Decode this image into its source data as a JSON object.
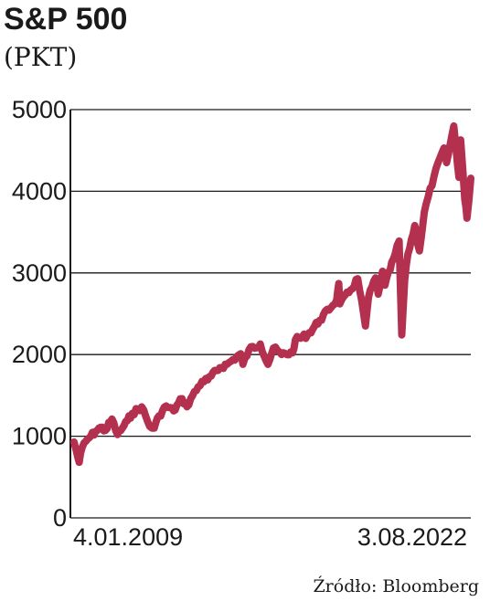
{
  "chart_data": {
    "type": "line",
    "title": "S&P 500",
    "subtitle": "(PKT)",
    "xlabel": "",
    "ylabel": "",
    "ylim": [
      0,
      5000
    ],
    "y_ticks": [
      "0",
      "1000",
      "2000",
      "3000",
      "4000",
      "5000"
    ],
    "x_tick_labels": [
      "4.01.2009",
      "3.08.2022"
    ],
    "xlim": [
      "2009-01-04",
      "2022-08-03"
    ],
    "grid": true,
    "legend": "none",
    "line_color": "#b3304f",
    "source": "Źródło: Bloomberg",
    "series": [
      {
        "x": [
          "2009-01-04",
          "2009-02-01",
          "2009-03-09",
          "2009-04-15",
          "2009-06-01",
          "2009-08-01",
          "2009-10-01",
          "2009-12-01",
          "2010-02-01",
          "2010-04-23",
          "2010-07-01",
          "2010-09-01",
          "2010-11-01",
          "2011-01-01",
          "2011-04-29",
          "2011-08-08",
          "2011-10-03",
          "2011-12-01",
          "2012-03-01",
          "2012-06-01",
          "2012-09-14",
          "2012-11-15",
          "2013-01-01",
          "2013-05-21",
          "2013-08-01",
          "2013-12-31",
          "2014-04-01",
          "2014-09-18",
          "2014-10-15",
          "2014-12-31",
          "2015-05-21",
          "2015-08-25",
          "2015-11-01",
          "2016-02-11",
          "2016-06-27",
          "2016-08-01",
          "2016-12-31",
          "2017-06-01",
          "2017-12-31",
          "2018-01-26",
          "2018-02-08",
          "2018-06-01",
          "2018-09-20",
          "2018-12-24",
          "2019-02-01",
          "2019-04-30",
          "2019-06-03",
          "2019-07-26",
          "2019-08-26",
          "2019-12-31",
          "2020-02-19",
          "2020-03-23",
          "2020-04-29",
          "2020-06-08",
          "2020-09-02",
          "2020-10-30",
          "2020-12-31",
          "2021-04-30",
          "2021-09-02",
          "2021-10-04",
          "2022-01-03",
          "2022-03-08",
          "2022-03-29",
          "2022-05-20",
          "2022-06-16",
          "2022-08-03"
        ],
        "values": [
          930,
          820,
          680,
          860,
          940,
          1000,
          1060,
          1110,
          1070,
          1210,
          1020,
          1100,
          1190,
          1280,
          1360,
          1120,
          1100,
          1250,
          1370,
          1310,
          1460,
          1360,
          1460,
          1670,
          1690,
          1840,
          1880,
          2010,
          1880,
          2060,
          2130,
          1880,
          2080,
          2000,
          2020,
          2180,
          2240,
          2420,
          2670,
          2870,
          2620,
          2760,
          2930,
          2350,
          2700,
          2940,
          2740,
          3020,
          2850,
          3230,
          3390,
          2240,
          2910,
          3230,
          3580,
          3270,
          3750,
          4180,
          4530,
          4350,
          4800,
          4170,
          4630,
          3900,
          3670,
          4160
        ]
      }
    ]
  }
}
